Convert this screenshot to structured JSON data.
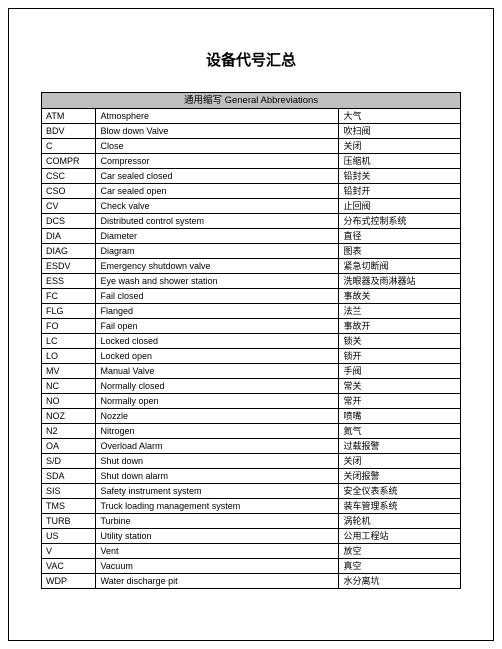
{
  "title": "设备代号汇总",
  "header": "通用缩写  General Abbreviations",
  "columns": [
    "abbr",
    "en",
    "cn"
  ],
  "col_widths": [
    "13%",
    "58%",
    "29%"
  ],
  "header_bg": "#bfbfbf",
  "border_color": "#000000",
  "rows": [
    {
      "abbr": "ATM",
      "en": "Atmosphere",
      "cn": "大气"
    },
    {
      "abbr": "BDV",
      "en": "Blow down Valve",
      "cn": "吹扫阀"
    },
    {
      "abbr": "C",
      "en": "Close",
      "cn": "关闭"
    },
    {
      "abbr": "COMPR",
      "en": "Compressor",
      "cn": "压缩机"
    },
    {
      "abbr": "CSC",
      "en": "Car sealed closed",
      "cn": "铅封关"
    },
    {
      "abbr": "CSO",
      "en": "Car sealed open",
      "cn": "铅封开"
    },
    {
      "abbr": "CV",
      "en": "Check valve",
      "cn": "止回阀"
    },
    {
      "abbr": "DCS",
      "en": "Distributed control system",
      "cn": "分布式控制系统"
    },
    {
      "abbr": "DIA",
      "en": "Diameter",
      "cn": "直径"
    },
    {
      "abbr": "DIAG",
      "en": "Diagram",
      "cn": "图表"
    },
    {
      "abbr": "ESDV",
      "en": "Emergency shutdown valve",
      "cn": "紧急切断阀"
    },
    {
      "abbr": "ESS",
      "en": "Eye wash and shower station",
      "cn": "洗眼器及雨淋器站"
    },
    {
      "abbr": "FC",
      "en": "Fail closed",
      "cn": "事故关"
    },
    {
      "abbr": "FLG",
      "en": "Flanged",
      "cn": "法兰"
    },
    {
      "abbr": "FO",
      "en": "Fail open",
      "cn": "事故开"
    },
    {
      "abbr": "LC",
      "en": "Locked closed",
      "cn": "锁关"
    },
    {
      "abbr": "LO",
      "en": "Locked open",
      "cn": "锁开"
    },
    {
      "abbr": "MV",
      "en": "Manual Valve",
      "cn": "手阀"
    },
    {
      "abbr": "NC",
      "en": "Normally closed",
      "cn": "常关"
    },
    {
      "abbr": "NO",
      "en": "Normally open",
      "cn": "常开"
    },
    {
      "abbr": "NOZ",
      "en": "Nozzle",
      "cn": "喷嘴"
    },
    {
      "abbr": "N2",
      "en": "Nitrogen",
      "cn": "氮气"
    },
    {
      "abbr": "OA",
      "en": "Overload Alarm",
      "cn": "过载报警"
    },
    {
      "abbr": "S/D",
      "en": "Shut down",
      "cn": "关闭"
    },
    {
      "abbr": "SDA",
      "en": "Shut down alarm",
      "cn": "关闭报警"
    },
    {
      "abbr": "SIS",
      "en": "Safety instrument system",
      "cn": "安全仪表系统"
    },
    {
      "abbr": "TMS",
      "en": "Truck loading management system",
      "cn": "装车管理系统"
    },
    {
      "abbr": "TURB",
      "en": "Turbine",
      "cn": "涡轮机"
    },
    {
      "abbr": "US",
      "en": "Utility station",
      "cn": "公用工程站"
    },
    {
      "abbr": "V",
      "en": "Vent",
      "cn": "放空"
    },
    {
      "abbr": "VAC",
      "en": "Vacuum",
      "cn": "真空"
    },
    {
      "abbr": "WDP",
      "en": "Water discharge pit",
      "cn": "水分离坑"
    }
  ]
}
